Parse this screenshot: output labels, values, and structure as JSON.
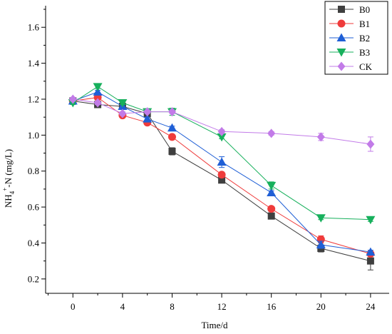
{
  "chart_data": {
    "type": "line",
    "xlabel": "Time/d",
    "ylabel": "NH4+-N (mg/L)",
    "ylabel_parts": {
      "main": "NH",
      "sub": "4",
      "sup": "+",
      "rest": "-N (mg/L)"
    },
    "xlim": [
      -2.2,
      25.5
    ],
    "ylim": [
      0.12,
      1.72
    ],
    "x_ticks": [
      0,
      4,
      8,
      12,
      16,
      20,
      24
    ],
    "x_ticks_labels": [
      "0",
      "4",
      "8",
      "12",
      "16",
      "20",
      "24"
    ],
    "y_ticks": [
      0.2,
      0.4,
      0.6,
      0.8,
      1.0,
      1.2,
      1.4,
      1.6
    ],
    "y_ticks_labels": [
      "0.2",
      "0.4",
      "0.6",
      "0.8",
      "1.0",
      "1.2",
      "1.4",
      "1.6"
    ],
    "grid": false,
    "legend_position": "top-right",
    "x": [
      0,
      2,
      4,
      6,
      8,
      12,
      16,
      20,
      24
    ],
    "series": [
      {
        "name": "B0",
        "color": "#3f3f3f",
        "marker": "square",
        "values": [
          1.19,
          1.17,
          1.16,
          1.12,
          0.91,
          0.75,
          0.55,
          0.37,
          0.3
        ],
        "errors": [
          0.01,
          0.01,
          0.01,
          0.01,
          0.02,
          0.01,
          0.01,
          0.02,
          0.05
        ]
      },
      {
        "name": "B1",
        "color": "#ef3b3b",
        "marker": "circle",
        "values": [
          1.19,
          1.21,
          1.11,
          1.07,
          0.99,
          0.78,
          0.59,
          0.42,
          0.34
        ],
        "errors": [
          0.01,
          0.01,
          0.01,
          0.01,
          0.01,
          0.01,
          0.01,
          0.02,
          0.01
        ]
      },
      {
        "name": "B2",
        "color": "#1f5fd6",
        "marker": "triangle-up",
        "values": [
          1.19,
          1.24,
          1.16,
          1.09,
          1.04,
          0.85,
          0.68,
          0.39,
          0.35
        ],
        "errors": [
          0.01,
          0.01,
          0.01,
          0.01,
          0.01,
          0.03,
          0.01,
          0.02,
          0.01
        ]
      },
      {
        "name": "B3",
        "color": "#17b05c",
        "marker": "triangle-down",
        "values": [
          1.18,
          1.27,
          1.18,
          1.13,
          1.13,
          0.99,
          0.72,
          0.54,
          0.53
        ],
        "errors": [
          0.01,
          0.01,
          0.01,
          0.01,
          0.02,
          0.01,
          0.02,
          0.01,
          0.01
        ]
      },
      {
        "name": "CK",
        "color": "#c27be8",
        "marker": "diamond",
        "values": [
          1.2,
          1.18,
          1.12,
          1.13,
          1.13,
          1.02,
          1.01,
          0.99,
          0.95
        ],
        "errors": [
          0.01,
          0.01,
          0.01,
          0.01,
          0.01,
          0.01,
          0.01,
          0.02,
          0.04
        ]
      }
    ]
  }
}
